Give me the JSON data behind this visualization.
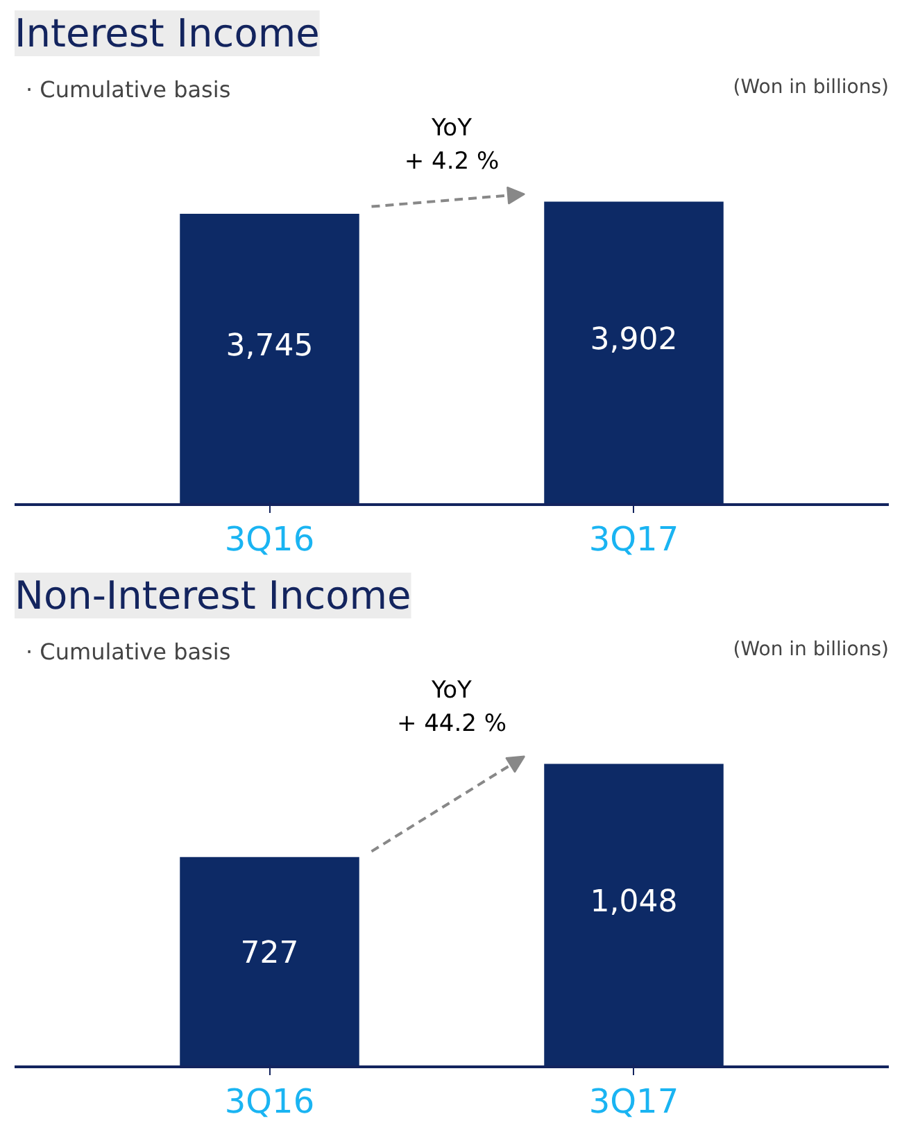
{
  "chart_data": [
    {
      "type": "bar",
      "title": "Interest Income",
      "categories": [
        "3Q16",
        "3Q17"
      ],
      "values": [
        3745,
        3902
      ],
      "value_labels": [
        "3,745",
        "3,902"
      ],
      "colors": [
        "#0d2a66",
        "#0d2a66"
      ],
      "tick_labels": "x",
      "annotations": [
        "· Cumulative basis",
        "(Won in billions)",
        "YoY\n+ 4.2 %"
      ]
    },
    {
      "type": "bar",
      "title": "Non-Interest Income",
      "categories": [
        "3Q16",
        "3Q17"
      ],
      "values": [
        727,
        1048
      ],
      "value_labels": [
        "727",
        "1,048"
      ],
      "colors": [
        "#0d2a66",
        "#0d2a66"
      ],
      "tick_labels": "x",
      "annotations": [
        "· Cumulative basis",
        "(Won in billions)",
        "YoY\n+ 44.2 %"
      ]
    }
  ]
}
